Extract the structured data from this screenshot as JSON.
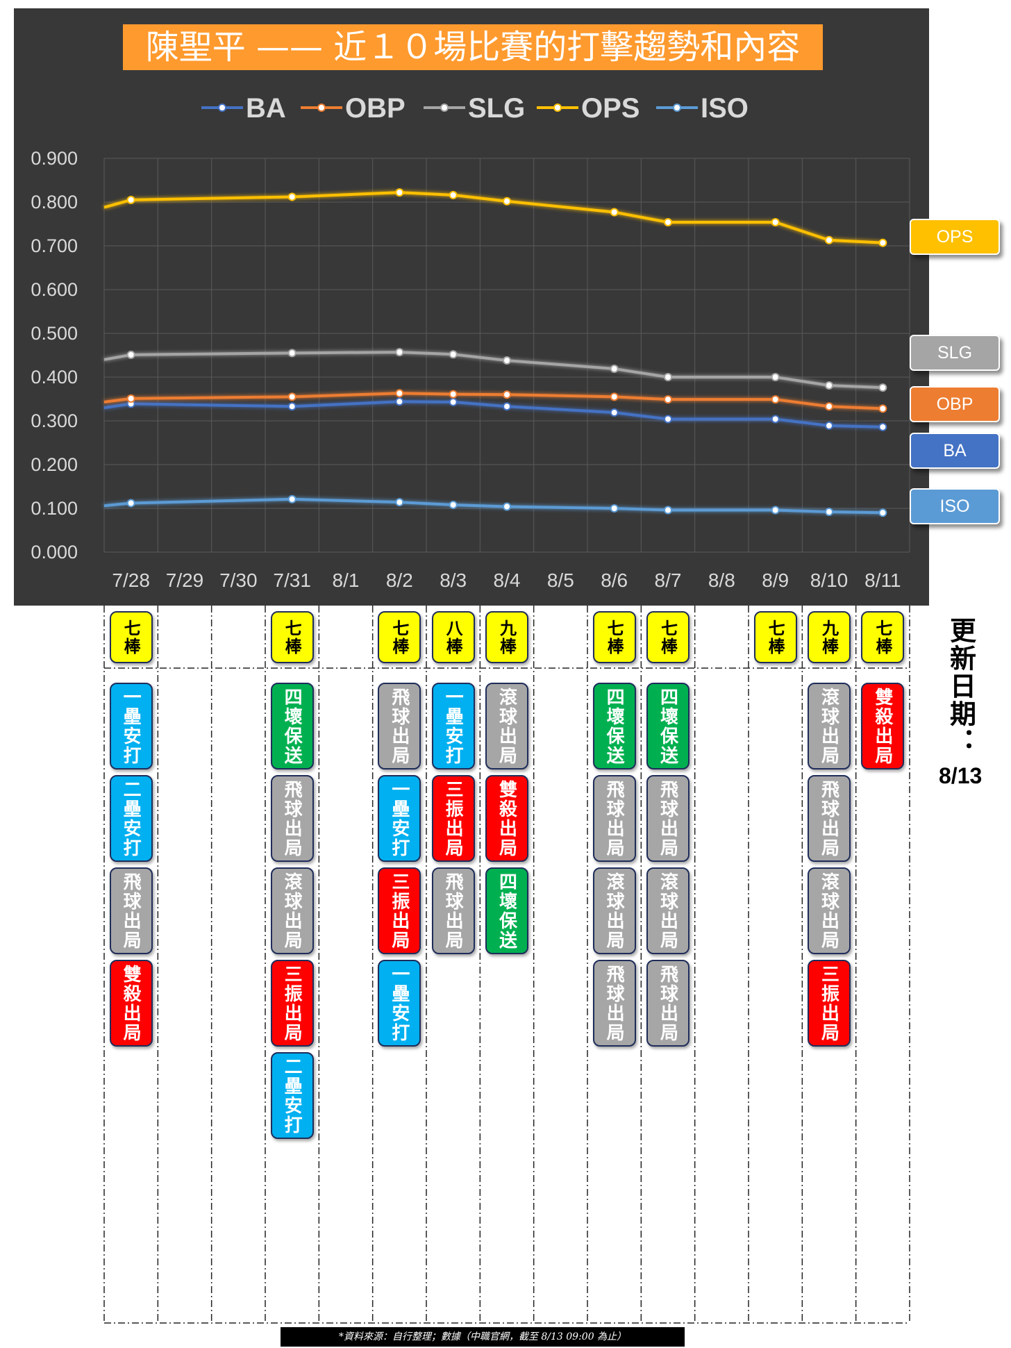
{
  "title": "陳聖平 —— 近１０場比賽的打擊趨勢和內容",
  "update_label": "更新日期：",
  "update_date": "8/13",
  "source_note": "*資料來源：自行整理；數據（中職官網，截至 8/13 09:00 為止）",
  "colors": {
    "BA": "#4472c4",
    "OBP": "#ed7d31",
    "SLG": "#a5a5a5",
    "OPS": "#ffc000",
    "ISO": "#5b9bd5",
    "hit": "#00b0f0",
    "walk": "#00b050",
    "out": "#a6a6a6",
    "bad": "#ff0000",
    "order": "#ffff00"
  },
  "chart_data": {
    "type": "line",
    "categories": [
      "7/28",
      "7/29",
      "7/30",
      "7/31",
      "8/1",
      "8/2",
      "8/3",
      "8/4",
      "8/5",
      "8/6",
      "8/7",
      "8/8",
      "8/9",
      "8/10",
      "8/11"
    ],
    "ylim": [
      0,
      0.9
    ],
    "yticks": [
      "0.000",
      "0.100",
      "0.200",
      "0.300",
      "0.400",
      "0.500",
      "0.600",
      "0.700",
      "0.800",
      "0.900"
    ],
    "grid": true,
    "legend_position": "top",
    "start_values": {
      "BA": 0.33,
      "OBP": 0.343,
      "SLG": 0.44,
      "OPS": 0.788,
      "ISO": 0.106
    },
    "series": [
      {
        "name": "BA",
        "values": [
          0.339,
          null,
          null,
          0.333,
          null,
          0.344,
          0.343,
          0.333,
          null,
          0.319,
          0.304,
          null,
          0.304,
          0.289,
          0.286
        ]
      },
      {
        "name": "OBP",
        "values": [
          0.351,
          null,
          null,
          0.355,
          null,
          0.363,
          0.361,
          0.36,
          null,
          0.355,
          0.349,
          null,
          0.349,
          0.333,
          0.328
        ]
      },
      {
        "name": "SLG",
        "values": [
          0.451,
          null,
          null,
          0.455,
          null,
          0.457,
          0.452,
          0.438,
          null,
          0.419,
          0.4,
          null,
          0.4,
          0.381,
          0.376
        ]
      },
      {
        "name": "OPS",
        "values": [
          0.805,
          null,
          null,
          0.812,
          null,
          0.822,
          0.816,
          0.802,
          null,
          0.777,
          0.754,
          null,
          0.754,
          0.713,
          0.707
        ]
      },
      {
        "name": "ISO",
        "values": [
          0.112,
          null,
          null,
          0.121,
          null,
          0.114,
          0.108,
          0.104,
          null,
          0.1,
          0.096,
          null,
          0.096,
          0.092,
          0.09
        ]
      }
    ],
    "end_labels": [
      "OPS",
      "SLG",
      "OBP",
      "BA",
      "ISO"
    ]
  },
  "games": [
    {
      "date": "7/28",
      "order": "七棒",
      "results": [
        {
          "text": "一壘安打",
          "type": "hit"
        },
        {
          "text": "二壘安打",
          "type": "hit"
        },
        {
          "text": "飛球出局",
          "type": "out"
        },
        {
          "text": "雙殺出局",
          "type": "bad"
        }
      ]
    },
    {
      "date": "7/29",
      "order": "",
      "results": []
    },
    {
      "date": "7/30",
      "order": "",
      "results": []
    },
    {
      "date": "7/31",
      "order": "七棒",
      "results": [
        {
          "text": "四壞保送",
          "type": "walk"
        },
        {
          "text": "飛球出局",
          "type": "out"
        },
        {
          "text": "滾球出局",
          "type": "out"
        },
        {
          "text": "三振出局",
          "type": "bad"
        },
        {
          "text": "二壘安打",
          "type": "hit"
        }
      ]
    },
    {
      "date": "8/1",
      "order": "",
      "results": []
    },
    {
      "date": "8/2",
      "order": "七棒",
      "results": [
        {
          "text": "飛球出局",
          "type": "out"
        },
        {
          "text": "一壘安打",
          "type": "hit"
        },
        {
          "text": "三振出局",
          "type": "bad"
        },
        {
          "text": "一壘安打",
          "type": "hit"
        }
      ]
    },
    {
      "date": "8/3",
      "order": "八棒",
      "results": [
        {
          "text": "一壘安打",
          "type": "hit"
        },
        {
          "text": "三振出局",
          "type": "bad"
        },
        {
          "text": "飛球出局",
          "type": "out"
        }
      ]
    },
    {
      "date": "8/4",
      "order": "九棒",
      "results": [
        {
          "text": "滾球出局",
          "type": "out"
        },
        {
          "text": "雙殺出局",
          "type": "bad"
        },
        {
          "text": "四壞保送",
          "type": "walk"
        }
      ]
    },
    {
      "date": "8/5",
      "order": "",
      "results": []
    },
    {
      "date": "8/6",
      "order": "七棒",
      "results": [
        {
          "text": "四壞保送",
          "type": "walk"
        },
        {
          "text": "飛球出局",
          "type": "out"
        },
        {
          "text": "滾球出局",
          "type": "out"
        },
        {
          "text": "飛球出局",
          "type": "out"
        }
      ]
    },
    {
      "date": "8/7",
      "order": "七棒",
      "results": [
        {
          "text": "四壞保送",
          "type": "walk"
        },
        {
          "text": "飛球出局",
          "type": "out"
        },
        {
          "text": "滾球出局",
          "type": "out"
        },
        {
          "text": "飛球出局",
          "type": "out"
        }
      ]
    },
    {
      "date": "8/8",
      "order": "",
      "results": []
    },
    {
      "date": "8/9",
      "order": "七棒",
      "results": []
    },
    {
      "date": "8/10",
      "order": "九棒",
      "results": [
        {
          "text": "滾球出局",
          "type": "out"
        },
        {
          "text": "飛球出局",
          "type": "out"
        },
        {
          "text": "滾球出局",
          "type": "out"
        },
        {
          "text": "三振出局",
          "type": "bad"
        }
      ]
    },
    {
      "date": "8/11",
      "order": "七棒",
      "results": [
        {
          "text": "雙殺出局",
          "type": "bad"
        }
      ]
    }
  ]
}
